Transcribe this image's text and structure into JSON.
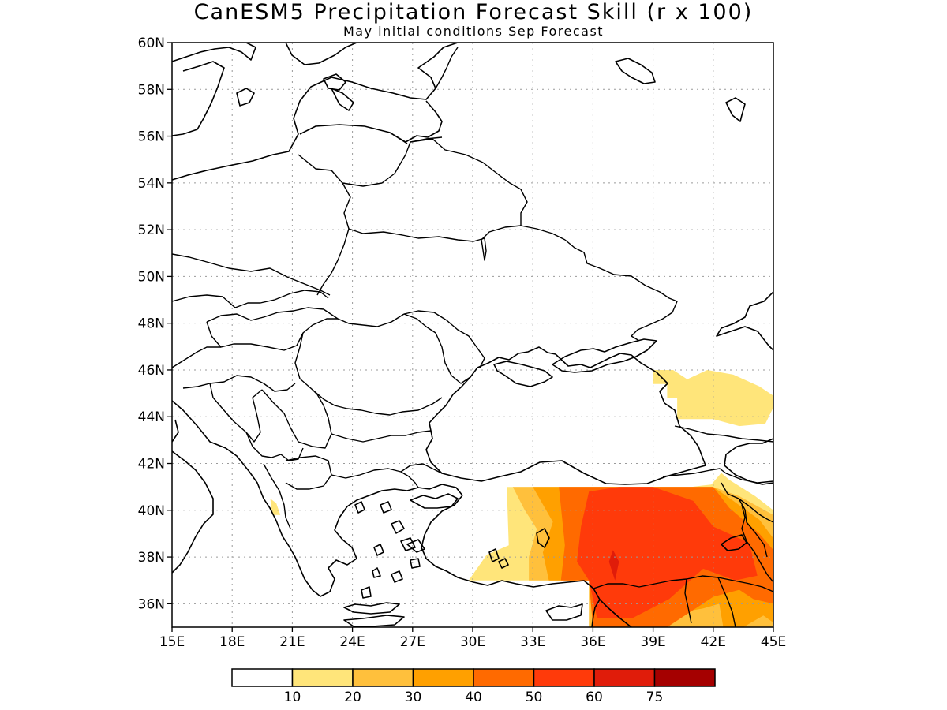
{
  "title": "CanESM5 Precipitation Forecast Skill (r x 100)",
  "subtitle": "May initial conditions  Sep Forecast",
  "map": {
    "lon_range": [
      15,
      45
    ],
    "lat_range": [
      35,
      60
    ],
    "lon_ticks": [
      "15E",
      "18E",
      "21E",
      "24E",
      "27E",
      "30E",
      "33E",
      "36E",
      "39E",
      "42E",
      "45E"
    ],
    "lat_ticks": [
      "60N",
      "58N",
      "56N",
      "54N",
      "52N",
      "50N",
      "48N",
      "46N",
      "44N",
      "42N",
      "40N",
      "38N",
      "36N"
    ],
    "lon_tick_values": [
      15,
      18,
      21,
      24,
      27,
      30,
      33,
      36,
      39,
      42,
      45
    ],
    "lat_tick_values": [
      60,
      58,
      56,
      54,
      52,
      50,
      48,
      46,
      44,
      42,
      40,
      38,
      36
    ]
  },
  "colorbar": {
    "colors": [
      "#ffffff",
      "#ffe57a",
      "#ffc03c",
      "#ffa000",
      "#ff6a00",
      "#ff3a0a",
      "#e01c0a",
      "#a50000"
    ],
    "labels": [
      "10",
      "20",
      "30",
      "40",
      "50",
      "60",
      "75"
    ]
  },
  "skill_regions": [
    {
      "level": "10-20",
      "color": "#ffe57a",
      "lonlat": [
        [
          39,
          46
        ],
        [
          40,
          46
        ],
        [
          40.7,
          45.6
        ],
        [
          41.7,
          46
        ],
        [
          43,
          45.8
        ],
        [
          44.3,
          45.3
        ],
        [
          45,
          44.9
        ],
        [
          45,
          44.4
        ],
        [
          44.6,
          43.7
        ],
        [
          43.3,
          43.6
        ],
        [
          42,
          43.9
        ],
        [
          40.2,
          43.9
        ],
        [
          40.2,
          44.8
        ],
        [
          39.7,
          44.8
        ],
        [
          39.7,
          45.4
        ],
        [
          39,
          45.4
        ]
      ]
    },
    {
      "level": "10-20",
      "color": "#ffe57a",
      "lonlat": [
        [
          19.9,
          40.5
        ],
        [
          20.2,
          40.3
        ],
        [
          20.4,
          39.8
        ],
        [
          20,
          39.8
        ]
      ]
    },
    {
      "level": "10-20",
      "color": "#ffe57a",
      "lonlat": [
        [
          29.8,
          37
        ],
        [
          30.7,
          38.1
        ],
        [
          31.8,
          38.5
        ],
        [
          31.7,
          41
        ],
        [
          33,
          41
        ],
        [
          35,
          41
        ],
        [
          39,
          41
        ],
        [
          40.9,
          41
        ],
        [
          41.9,
          41.1
        ],
        [
          42.4,
          41.6
        ],
        [
          42.8,
          41.3
        ],
        [
          44.1,
          40.6
        ],
        [
          45,
          40
        ],
        [
          45,
          35
        ],
        [
          35.8,
          35
        ],
        [
          35.8,
          37
        ],
        [
          33,
          37
        ]
      ]
    },
    {
      "level": "20-30",
      "color": "#ffc03c",
      "lonlat": [
        [
          32,
          41
        ],
        [
          33,
          41
        ],
        [
          39,
          41
        ],
        [
          42,
          41
        ],
        [
          43.3,
          40.6
        ],
        [
          45,
          39.8
        ],
        [
          45,
          35
        ],
        [
          35.8,
          35
        ],
        [
          35.8,
          37
        ],
        [
          32.8,
          37
        ],
        [
          32.8,
          38
        ],
        [
          33.2,
          39.2
        ],
        [
          32.6,
          40
        ]
      ]
    },
    {
      "level": "30-40",
      "color": "#ffa000",
      "lonlat": [
        [
          33,
          41
        ],
        [
          39,
          41
        ],
        [
          42,
          41
        ],
        [
          43,
          40.4
        ],
        [
          44.3,
          39.6
        ],
        [
          45,
          38.8
        ],
        [
          45,
          35.2
        ],
        [
          44.5,
          35.5
        ],
        [
          43.5,
          35
        ],
        [
          42.5,
          35
        ],
        [
          42.3,
          36
        ],
        [
          41.5,
          35.8
        ],
        [
          36,
          35
        ],
        [
          35.8,
          37
        ],
        [
          33.8,
          37
        ],
        [
          33.5,
          38.2
        ],
        [
          34,
          39.5
        ]
      ]
    },
    {
      "level": "40-50",
      "color": "#ff6a00",
      "lonlat": [
        [
          34.3,
          41
        ],
        [
          39,
          41
        ],
        [
          42,
          41
        ],
        [
          42.8,
          40.1
        ],
        [
          44.3,
          39
        ],
        [
          45,
          38.3
        ],
        [
          45,
          36
        ],
        [
          44,
          36.2
        ],
        [
          43.3,
          36.6
        ],
        [
          42,
          36.3
        ],
        [
          39.7,
          35
        ],
        [
          36,
          35
        ],
        [
          35.8,
          37
        ],
        [
          34.4,
          37
        ],
        [
          34.6,
          38.5
        ]
      ]
    },
    {
      "level": "50-60",
      "color": "#ff3a0a",
      "lonlat": [
        [
          35.8,
          40.8
        ],
        [
          37.3,
          41
        ],
        [
          39,
          41
        ],
        [
          41,
          40.4
        ],
        [
          42,
          39.3
        ],
        [
          43.8,
          38.6
        ],
        [
          44.2,
          37.2
        ],
        [
          43.1,
          37
        ],
        [
          41.5,
          37.5
        ],
        [
          39.8,
          36.2
        ],
        [
          38,
          35.4
        ],
        [
          36.2,
          35.4
        ],
        [
          35.8,
          37
        ],
        [
          35.2,
          37.8
        ],
        [
          35.4,
          39.3
        ]
      ]
    },
    {
      "level": "60-75",
      "color": "#e01c0a",
      "lonlat": [
        [
          37,
          38.3
        ],
        [
          37.3,
          37.8
        ],
        [
          37.1,
          37
        ],
        [
          36.8,
          37.8
        ]
      ]
    }
  ]
}
